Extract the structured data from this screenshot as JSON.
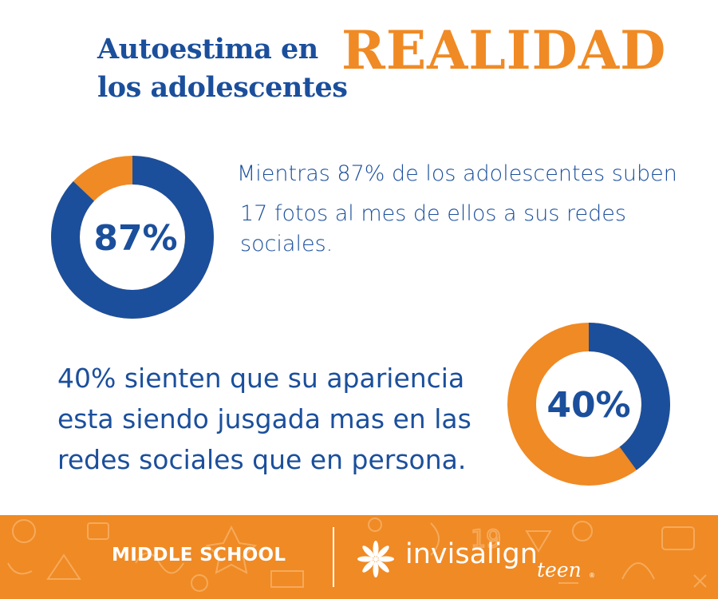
{
  "header": {
    "title_line1": "Autoestima en",
    "title_line2": "los adolescentes",
    "highlight": "REALIDAD"
  },
  "stats": [
    {
      "label": "87%",
      "value": 0.87,
      "line1": "Mientras 87% de los adolescentes suben",
      "line2": "17 fotos al mes de ellos a sus redes sociales."
    },
    {
      "label": "40%",
      "value": 0.4,
      "text": "40% sienten que su apariencia esta siendo jusgada mas en las redes sociales que en persona."
    }
  ],
  "footer": {
    "left_label": "MIDDLE SCHOOL",
    "brand": "invisalign",
    "brand_suffix": "teen",
    "reg_mark": "®"
  },
  "colors": {
    "blue": "#1b4f9c",
    "orange": "#f08a24",
    "white": "#ffffff"
  },
  "icons": {
    "logo": "invisalign-flower-icon"
  }
}
